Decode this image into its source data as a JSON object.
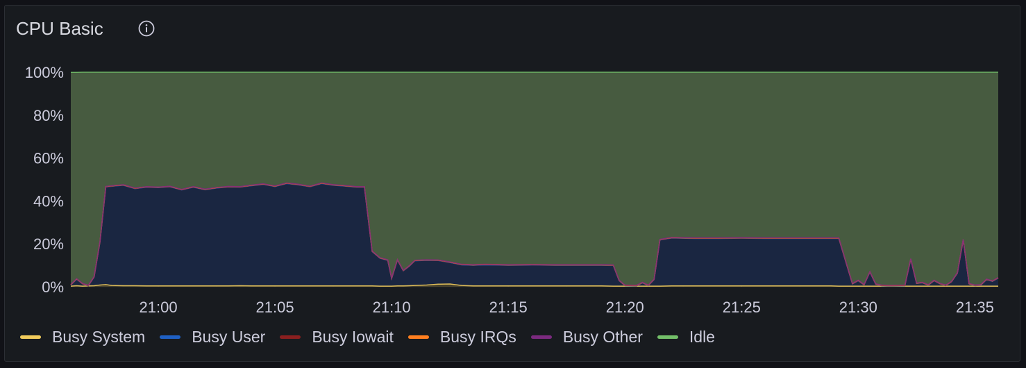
{
  "panel": {
    "title": "CPU Basic",
    "info_icon": "info-circle-icon"
  },
  "chart_data": {
    "type": "area",
    "stacked": true,
    "title": "CPU Basic",
    "xlabel": "",
    "ylabel": "",
    "ylim": [
      0,
      100
    ],
    "y_ticks": [
      "0%",
      "20%",
      "40%",
      "60%",
      "80%",
      "100%"
    ],
    "x_ticks": [
      "21:00",
      "21:05",
      "21:10",
      "21:15",
      "21:20",
      "21:25",
      "21:30",
      "21:35"
    ],
    "x_range": [
      "20:56:15",
      "21:36:00"
    ],
    "grid": true,
    "legend_position": "bottom-left",
    "x": [
      "20:56:15",
      "20:56:30",
      "20:56:45",
      "20:57:00",
      "20:57:15",
      "20:57:30",
      "20:57:45",
      "20:58:00",
      "20:58:30",
      "20:59:00",
      "20:59:30",
      "21:00:00",
      "21:00:30",
      "21:01:00",
      "21:01:30",
      "21:02:00",
      "21:02:30",
      "21:03:00",
      "21:03:30",
      "21:04:00",
      "21:04:30",
      "21:05:00",
      "21:05:30",
      "21:06:00",
      "21:06:30",
      "21:07:00",
      "21:07:30",
      "21:08:00",
      "21:08:30",
      "21:08:50",
      "21:09:10",
      "21:09:30",
      "21:09:50",
      "21:10:00",
      "21:10:15",
      "21:10:30",
      "21:10:45",
      "21:11:00",
      "21:11:30",
      "21:12:00",
      "21:12:30",
      "21:13:00",
      "21:13:30",
      "21:14:00",
      "21:15:00",
      "21:16:00",
      "21:17:00",
      "21:18:00",
      "21:19:00",
      "21:19:30",
      "21:19:45",
      "21:20:00",
      "21:20:30",
      "21:20:45",
      "21:21:00",
      "21:21:15",
      "21:21:30",
      "21:22:00",
      "21:23:00",
      "21:24:00",
      "21:25:00",
      "21:26:00",
      "21:27:00",
      "21:28:00",
      "21:28:50",
      "21:29:10",
      "21:29:30",
      "21:29:45",
      "21:30:00",
      "21:30:15",
      "21:30:30",
      "21:30:45",
      "21:31:00",
      "21:31:15",
      "21:31:30",
      "21:32:00",
      "21:32:15",
      "21:32:30",
      "21:32:45",
      "21:33:00",
      "21:33:15",
      "21:33:30",
      "21:33:45",
      "21:34:00",
      "21:34:15",
      "21:34:30",
      "21:34:45",
      "21:35:00",
      "21:35:15",
      "21:35:30",
      "21:35:45",
      "21:36:00"
    ],
    "series": [
      {
        "name": "Busy System",
        "color": "#f2cc5c",
        "values": [
          0.3,
          0.5,
          0.3,
          0.4,
          0.5,
          0.8,
          1.0,
          0.6,
          0.5,
          0.5,
          0.4,
          0.4,
          0.4,
          0.4,
          0.4,
          0.4,
          0.4,
          0.4,
          0.5,
          0.4,
          0.4,
          0.4,
          0.4,
          0.4,
          0.4,
          0.4,
          0.4,
          0.4,
          0.4,
          0.4,
          0.4,
          0.3,
          0.3,
          0.3,
          0.4,
          0.4,
          0.5,
          0.6,
          0.8,
          1.2,
          1.3,
          0.6,
          0.4,
          0.4,
          0.4,
          0.4,
          0.4,
          0.4,
          0.4,
          0.3,
          0.3,
          0.3,
          0.3,
          0.3,
          0.3,
          0.3,
          0.3,
          0.4,
          0.4,
          0.4,
          0.4,
          0.4,
          0.4,
          0.4,
          0.4,
          0.3,
          0.3,
          0.3,
          0.3,
          0.3,
          0.3,
          0.3,
          0.3,
          0.3,
          0.3,
          0.3,
          0.3,
          0.3,
          0.3,
          0.3,
          0.3,
          0.3,
          0.3,
          0.3,
          0.3,
          0.3,
          0.3,
          0.3,
          0.3,
          0.3,
          0.3,
          0.3
        ]
      },
      {
        "name": "Busy User",
        "color": "#1f60c4",
        "values": [
          0.5,
          3.0,
          1.0,
          0.0,
          4.0,
          20.0,
          45.5,
          46.2,
          46.8,
          45.2,
          46.0,
          45.8,
          46.2,
          44.7,
          46.0,
          44.8,
          45.6,
          46.1,
          45.9,
          46.7,
          47.3,
          46.3,
          47.7,
          47.1,
          46.2,
          47.7,
          46.9,
          46.5,
          46.0,
          46.0,
          16.0,
          13.0,
          12.0,
          3.5,
          12.0,
          7.0,
          9.0,
          11.5,
          11.5,
          11.0,
          10.0,
          9.6,
          9.6,
          9.8,
          9.6,
          9.7,
          9.6,
          9.6,
          9.6,
          9.6,
          2.5,
          0.2,
          0.1,
          1.5,
          0.2,
          3.0,
          21.5,
          22.3,
          22.1,
          22.1,
          22.2,
          22.1,
          22.1,
          22.1,
          22.1,
          22.2,
          10.0,
          1.0,
          2.5,
          0.5,
          6.5,
          0.8,
          0.2,
          0.1,
          0.1,
          0.2,
          12.5,
          1.2,
          1.5,
          0.4,
          2.5,
          1.0,
          0.2,
          2.0,
          6.0,
          21.5,
          1.0,
          0.2,
          0.4,
          3.0,
          2.2,
          3.7
        ]
      },
      {
        "name": "Busy Iowait",
        "color": "#8a1f1f",
        "values": [
          0.1,
          0.1,
          0.1,
          0.1,
          0.1,
          0.1,
          0.1,
          0.1,
          0.1,
          0.1,
          0.1,
          0.1,
          0.1,
          0.1,
          0.1,
          0.1,
          0.1,
          0.1,
          0.1,
          0.1,
          0.1,
          0.1,
          0.1,
          0.1,
          0.1,
          0.1,
          0.1,
          0.1,
          0.1,
          0.1,
          0.1,
          0.1,
          0.1,
          0.1,
          0.1,
          0.1,
          0.1,
          0.1,
          0.1,
          0.1,
          0.1,
          0.1,
          0.1,
          0.1,
          0.1,
          0.1,
          0.1,
          0.1,
          0.1,
          0.1,
          0.1,
          0.1,
          0.1,
          0.1,
          0.1,
          0.1,
          0.1,
          0.1,
          0.1,
          0.1,
          0.1,
          0.1,
          0.1,
          0.1,
          0.1,
          0.1,
          0.1,
          0.1,
          0.1,
          0.1,
          0.1,
          0.1,
          0.1,
          0.1,
          0.1,
          0.1,
          0.1,
          0.1,
          0.1,
          0.1,
          0.1,
          0.1,
          0.1,
          0.1,
          0.1,
          0.1,
          0.1,
          0.1,
          0.1,
          0.1,
          0.1,
          0.1
        ]
      },
      {
        "name": "Busy IRQs",
        "color": "#ff7f1f",
        "values": [
          0.1,
          0.1,
          0.1,
          0.1,
          0.1,
          0.1,
          0.1,
          0.1,
          0.1,
          0.1,
          0.1,
          0.1,
          0.1,
          0.1,
          0.1,
          0.1,
          0.1,
          0.1,
          0.1,
          0.1,
          0.1,
          0.1,
          0.1,
          0.1,
          0.1,
          0.1,
          0.1,
          0.1,
          0.1,
          0.1,
          0.1,
          0.1,
          0.1,
          0.1,
          0.1,
          0.1,
          0.1,
          0.1,
          0.1,
          0.1,
          0.1,
          0.1,
          0.1,
          0.1,
          0.1,
          0.1,
          0.1,
          0.1,
          0.1,
          0.1,
          0.1,
          0.1,
          0.1,
          0.1,
          0.1,
          0.1,
          0.1,
          0.1,
          0.1,
          0.1,
          0.1,
          0.1,
          0.1,
          0.1,
          0.1,
          0.1,
          0.1,
          0.1,
          0.1,
          0.1,
          0.1,
          0.1,
          0.1,
          0.1,
          0.1,
          0.1,
          0.1,
          0.1,
          0.1,
          0.1,
          0.1,
          0.1,
          0.1,
          0.1,
          0.1,
          0.1,
          0.1,
          0.1,
          0.1,
          0.1,
          0.1,
          0.1
        ]
      },
      {
        "name": "Busy Other",
        "color": "#7b2a7f",
        "values": [
          0.1,
          0.1,
          0.1,
          0.1,
          0.1,
          0.1,
          0.1,
          0.1,
          0.1,
          0.1,
          0.1,
          0.1,
          0.1,
          0.1,
          0.1,
          0.1,
          0.1,
          0.1,
          0.1,
          0.1,
          0.1,
          0.1,
          0.1,
          0.1,
          0.1,
          0.1,
          0.1,
          0.1,
          0.1,
          0.1,
          0.1,
          0.1,
          0.1,
          0.1,
          0.1,
          0.1,
          0.1,
          0.1,
          0.1,
          0.1,
          0.1,
          0.1,
          0.1,
          0.1,
          0.1,
          0.1,
          0.1,
          0.1,
          0.1,
          0.1,
          0.1,
          0.1,
          0.1,
          0.1,
          0.1,
          0.1,
          0.1,
          0.1,
          0.1,
          0.1,
          0.1,
          0.1,
          0.1,
          0.1,
          0.1,
          0.1,
          0.1,
          0.1,
          0.1,
          0.1,
          0.1,
          0.1,
          0.1,
          0.1,
          0.1,
          0.1,
          0.1,
          0.1,
          0.1,
          0.1,
          0.1,
          0.1,
          0.1,
          0.1,
          0.1,
          0.1,
          0.1,
          0.1,
          0.1,
          0.1,
          0.1,
          0.1
        ]
      },
      {
        "name": "Idle",
        "color": "#73bf69",
        "fill": "#475b40",
        "values": [
          98.8,
          96.1,
          98.4,
          99.3,
          95.2,
          78.9,
          53.3,
          53.0,
          52.5,
          54.1,
          53.4,
          53.6,
          53.2,
          54.7,
          53.4,
          54.6,
          53.8,
          53.3,
          53.4,
          52.7,
          52.1,
          53.1,
          51.7,
          52.3,
          53.2,
          51.7,
          52.5,
          52.9,
          53.4,
          53.4,
          83.4,
          86.5,
          87.5,
          96.0,
          87.4,
          92.4,
          90.3,
          87.7,
          87.5,
          87.6,
          88.5,
          89.6,
          89.8,
          89.6,
          89.8,
          89.7,
          89.8,
          89.8,
          89.8,
          89.9,
          96.9,
          99.3,
          99.4,
          98.0,
          99.3,
          96.5,
          78.0,
          77.1,
          77.3,
          77.3,
          77.2,
          77.3,
          77.3,
          77.3,
          77.3,
          77.3,
          89.5,
          98.5,
          97.0,
          99.0,
          93.0,
          98.7,
          99.3,
          99.4,
          99.4,
          99.3,
          87.0,
          98.3,
          98.0,
          99.1,
          97.0,
          98.5,
          99.3,
          97.5,
          93.5,
          78.0,
          98.5,
          99.3,
          99.1,
          96.5,
          97.3,
          95.8
        ]
      }
    ]
  }
}
